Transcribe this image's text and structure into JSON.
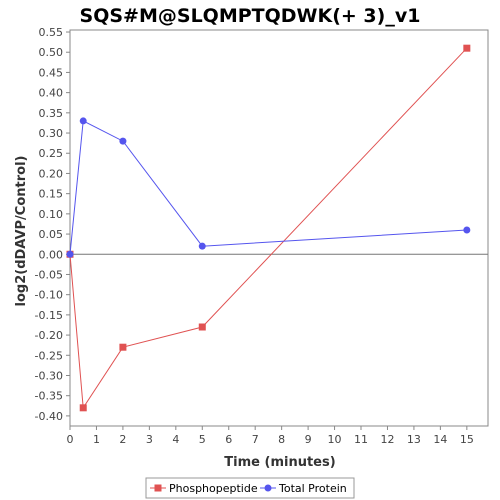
{
  "chart_data": {
    "type": "line",
    "title": "SQS#M@SLQMPTQDWK(+ 3)_v1",
    "xlabel": "Time (minutes)",
    "ylabel": "log2(dDAVP/Control)",
    "xlim": [
      0,
      15.8
    ],
    "ylim": [
      -0.425,
      0.555
    ],
    "x_ticks": [
      0,
      1,
      2,
      3,
      4,
      5,
      6,
      7,
      8,
      9,
      10,
      11,
      12,
      13,
      14,
      15
    ],
    "y_ticks": [
      -0.4,
      -0.35,
      -0.3,
      -0.25,
      -0.2,
      -0.15,
      -0.1,
      -0.05,
      0.0,
      0.05,
      0.1,
      0.15,
      0.2,
      0.25,
      0.3,
      0.35,
      0.4,
      0.45,
      0.5,
      0.55
    ],
    "grid": false,
    "legend_position": "bottom",
    "series": [
      {
        "name": "Phosphopeptide",
        "color": "#e05252",
        "marker": "square",
        "x": [
          0,
          0.5,
          2,
          5,
          15
        ],
        "values": [
          0.0,
          -0.38,
          -0.23,
          -0.18,
          0.51
        ]
      },
      {
        "name": "Total Protein",
        "color": "#5555ee",
        "marker": "circle",
        "x": [
          0,
          0.5,
          2,
          5,
          15
        ],
        "values": [
          0.0,
          0.33,
          0.28,
          0.02,
          0.06
        ]
      }
    ]
  }
}
